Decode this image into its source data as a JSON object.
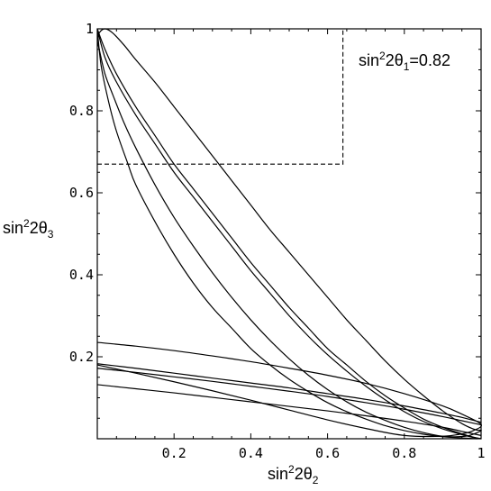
{
  "chart_data": {
    "type": "line",
    "annotation": {
      "base": "sin",
      "exp": "2",
      "mid": "2θ",
      "sub": "1",
      "tail": "=0.82"
    },
    "xlabel": {
      "base": "sin",
      "exp": "2",
      "mid": "2θ",
      "sub": "2"
    },
    "ylabel": {
      "base": "sin",
      "exp": "2",
      "mid": "2θ",
      "sub": "3"
    },
    "xlim": [
      0,
      1
    ],
    "ylim": [
      0,
      1
    ],
    "x_ticks": [
      "0.2",
      "0.4",
      "0.6",
      "0.8",
      "1"
    ],
    "y_ticks": [
      "0.2",
      "0.4",
      "0.6",
      "0.8",
      "1"
    ],
    "grid": false,
    "cut_box": {
      "x_max": 0.64,
      "y_min": 0.67,
      "style": "dashed"
    },
    "series": [
      {
        "x": [
          0.0,
          0.005,
          0.02,
          0.04,
          0.07,
          0.1,
          0.15,
          0.2,
          0.25,
          0.3,
          0.35,
          0.4,
          0.45,
          0.5,
          0.55,
          0.6,
          0.65,
          0.7,
          0.75,
          0.8,
          0.85,
          0.9,
          0.95,
          0.985,
          1.0,
          0.97,
          0.94,
          0.9,
          0.85,
          0.8,
          0.75,
          0.7,
          0.65,
          0.6,
          0.55,
          0.5,
          0.45,
          0.4,
          0.35,
          0.3,
          0.25,
          0.2,
          0.15,
          0.1,
          0.07,
          0.04,
          0.02,
          0.005,
          0.0
        ],
        "y": [
          0.97,
          0.99,
          1.0,
          0.99,
          0.96,
          0.925,
          0.87,
          0.81,
          0.75,
          0.69,
          0.63,
          0.57,
          0.51,
          0.455,
          0.4,
          0.345,
          0.29,
          0.24,
          0.19,
          0.145,
          0.105,
          0.068,
          0.037,
          0.022,
          0.02,
          0.008,
          0.005,
          0.006,
          0.015,
          0.028,
          0.045,
          0.065,
          0.09,
          0.12,
          0.155,
          0.195,
          0.24,
          0.29,
          0.345,
          0.405,
          0.47,
          0.54,
          0.62,
          0.71,
          0.77,
          0.84,
          0.89,
          0.95,
          0.97
        ]
      },
      {
        "x": [
          0.0,
          0.02,
          0.05,
          0.1,
          0.15,
          0.2,
          0.25,
          0.3,
          0.35,
          0.4,
          0.45,
          0.5,
          0.55,
          0.6,
          0.65,
          0.7,
          0.75,
          0.8,
          0.85,
          0.9,
          0.95,
          0.98,
          1.0
        ],
        "y": [
          1.0,
          0.95,
          0.89,
          0.81,
          0.74,
          0.67,
          0.61,
          0.55,
          0.49,
          0.43,
          0.375,
          0.32,
          0.27,
          0.22,
          0.18,
          0.14,
          0.105,
          0.075,
          0.048,
          0.028,
          0.012,
          0.004,
          0.0
        ]
      },
      {
        "x": [
          0.0,
          0.02,
          0.05,
          0.1,
          0.15,
          0.2,
          0.25,
          0.3,
          0.35,
          0.4,
          0.45,
          0.5,
          0.55,
          0.6,
          0.65,
          0.7,
          0.75,
          0.8,
          0.85,
          0.9,
          0.95,
          0.98,
          1.0
        ],
        "y": [
          1.0,
          0.93,
          0.87,
          0.79,
          0.72,
          0.65,
          0.59,
          0.53,
          0.47,
          0.41,
          0.355,
          0.3,
          0.25,
          0.205,
          0.165,
          0.128,
          0.095,
          0.066,
          0.042,
          0.024,
          0.01,
          0.003,
          0.0
        ]
      },
      {
        "x": [
          0.0,
          0.01,
          0.03,
          0.05,
          0.08,
          0.1,
          0.15,
          0.2,
          0.25,
          0.3,
          0.35,
          0.4,
          0.45,
          0.5,
          0.55,
          0.6,
          0.65,
          0.7,
          0.75,
          0.8,
          0.85,
          0.9,
          0.95,
          0.99
        ],
        "y": [
          1.0,
          0.91,
          0.82,
          0.75,
          0.67,
          0.62,
          0.53,
          0.45,
          0.38,
          0.32,
          0.27,
          0.22,
          0.18,
          0.145,
          0.115,
          0.088,
          0.066,
          0.048,
          0.032,
          0.02,
          0.011,
          0.005,
          0.002,
          0.0
        ]
      },
      {
        "x": [
          0.0,
          0.1,
          0.2,
          0.3,
          0.4,
          0.5,
          0.6,
          0.7,
          0.8,
          0.9,
          0.95,
          1.0,
          0.98,
          0.95,
          0.9,
          0.8,
          0.7,
          0.6,
          0.5,
          0.4,
          0.3,
          0.2,
          0.1,
          0.0
        ],
        "y": [
          0.235,
          0.226,
          0.215,
          0.202,
          0.188,
          0.172,
          0.155,
          0.135,
          0.11,
          0.08,
          0.06,
          0.035,
          0.02,
          0.012,
          0.006,
          0.008,
          0.025,
          0.046,
          0.07,
          0.094,
          0.117,
          0.139,
          0.16,
          0.18
        ]
      },
      {
        "x": [
          0.0,
          0.1,
          0.2,
          0.3,
          0.4,
          0.5,
          0.6,
          0.7,
          0.8,
          0.9,
          0.95,
          1.0
        ],
        "y": [
          0.183,
          0.172,
          0.16,
          0.148,
          0.136,
          0.124,
          0.11,
          0.096,
          0.08,
          0.062,
          0.052,
          0.04
        ]
      },
      {
        "x": [
          0.0,
          0.1,
          0.2,
          0.3,
          0.4,
          0.5,
          0.6,
          0.7,
          0.8,
          0.9,
          0.95,
          1.0
        ],
        "y": [
          0.172,
          0.162,
          0.151,
          0.14,
          0.128,
          0.116,
          0.103,
          0.088,
          0.072,
          0.054,
          0.044,
          0.034
        ]
      },
      {
        "x": [
          0.0,
          0.1,
          0.2,
          0.3,
          0.4,
          0.5,
          0.6,
          0.7,
          0.8,
          0.9,
          0.95,
          1.0
        ],
        "y": [
          0.132,
          0.122,
          0.112,
          0.101,
          0.09,
          0.079,
          0.068,
          0.056,
          0.043,
          0.028,
          0.018,
          0.008
        ]
      }
    ]
  }
}
